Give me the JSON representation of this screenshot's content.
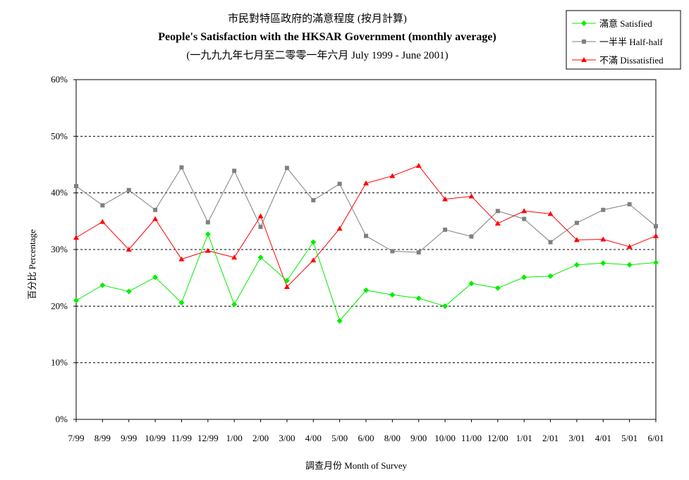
{
  "chart_data": {
    "type": "line",
    "title": "市民對特區政府的滿意程度 (按月計算)",
    "subtitle": "People's Satisfaction with the HKSAR Government (monthly average)",
    "subtitle2": "(一九九九年七月至二零零一年六月 July 1999 - June 2001)",
    "xlabel": "調查月份 Month of Survey",
    "ylabel": "百分比 Percentage",
    "ylim": [
      0,
      60
    ],
    "yticks": [
      "0%",
      "10%",
      "20%",
      "30%",
      "40%",
      "50%",
      "60%"
    ],
    "ytick_values": [
      0,
      10,
      20,
      30,
      40,
      50,
      60
    ],
    "grid": "horizontal dashed",
    "legend_position": "top-right",
    "categories": [
      "7/99",
      "8/99",
      "9/99",
      "10/99",
      "11/99",
      "12/99",
      "1/00",
      "2/00",
      "3/00",
      "4/00",
      "5/00",
      "6/00",
      "8/00",
      "9/00",
      "10/00",
      "11/00",
      "12/00",
      "1/01",
      "2/01",
      "3/01",
      "4/01",
      "5/01",
      "6/01"
    ],
    "series": [
      {
        "name": "滿意 Satisfied",
        "color": "#00ee00",
        "marker": "diamond",
        "values": [
          21.0,
          23.7,
          22.6,
          25.1,
          20.6,
          32.7,
          20.3,
          28.6,
          24.5,
          31.3,
          17.4,
          22.8,
          22.0,
          21.4,
          20.0,
          24.0,
          23.2,
          25.1,
          25.3,
          27.3,
          27.6,
          27.3,
          27.7
        ]
      },
      {
        "name": "一半半 Half-half",
        "color": "#808080",
        "marker": "square",
        "values": [
          41.2,
          37.8,
          40.5,
          37.0,
          44.5,
          34.8,
          43.9,
          34.0,
          44.4,
          38.7,
          41.6,
          32.4,
          29.7,
          29.5,
          33.5,
          32.3,
          36.8,
          35.4,
          31.3,
          34.7,
          37.0,
          38.0,
          34.1
        ]
      },
      {
        "name": "不滿 Dissatisfied",
        "color": "#ff0000",
        "marker": "triangle",
        "values": [
          32.1,
          34.9,
          30.0,
          35.4,
          28.3,
          29.8,
          28.6,
          35.9,
          23.4,
          28.1,
          33.7,
          41.7,
          43.0,
          44.8,
          38.9,
          39.4,
          34.6,
          36.8,
          36.3,
          31.7,
          31.8,
          30.5,
          32.4
        ]
      }
    ]
  }
}
